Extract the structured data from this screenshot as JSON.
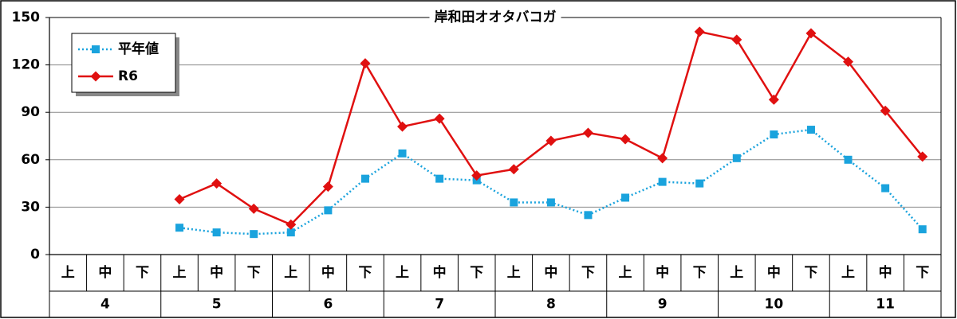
{
  "chart_data": {
    "type": "line",
    "title": "岸和田オオタバコガ",
    "categories": [
      "上",
      "中",
      "下",
      "上",
      "中",
      "下",
      "上",
      "中",
      "下",
      "上",
      "中",
      "下",
      "上",
      "中",
      "下",
      "上",
      "中",
      "下",
      "上",
      "中",
      "下",
      "上",
      "中",
      "下"
    ],
    "group_labels": [
      "4",
      "5",
      "6",
      "7",
      "8",
      "9",
      "10",
      "11"
    ],
    "series": [
      {
        "name": "平年値",
        "color": "#1aa3dd",
        "line_style": "dotted",
        "marker": "square",
        "values": [
          null,
          null,
          null,
          17,
          14,
          13,
          14,
          28,
          48,
          64,
          48,
          47,
          33,
          33,
          25,
          36,
          46,
          45,
          61,
          76,
          79,
          60,
          42,
          16
        ]
      },
      {
        "name": "R6",
        "color": "#e01010",
        "line_style": "solid",
        "marker": "diamond",
        "values": [
          null,
          null,
          null,
          35,
          45,
          29,
          19,
          43,
          121,
          81,
          86,
          50,
          54,
          72,
          77,
          73,
          61,
          141,
          136,
          98,
          140,
          122,
          91,
          62
        ]
      }
    ],
    "ylim": [
      0,
      150
    ],
    "yticks": [
      0,
      30,
      60,
      90,
      120,
      150
    ],
    "grid": true,
    "legend": "upper left"
  }
}
